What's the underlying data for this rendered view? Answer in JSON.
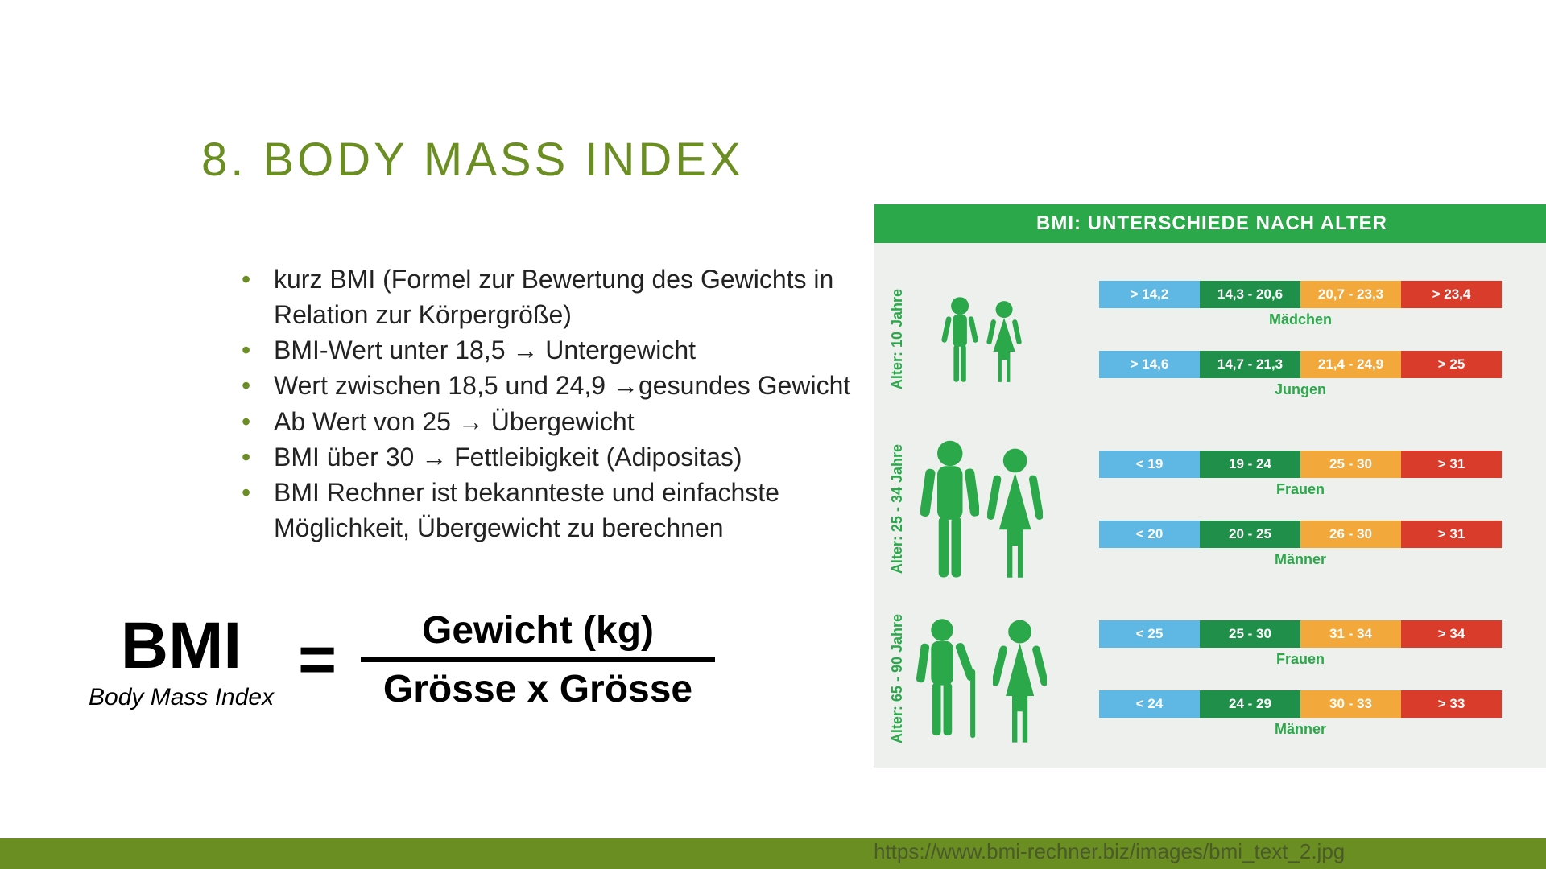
{
  "title": "8. BODY  MASS  INDEX",
  "title_color": "#6b8e23",
  "bullet_marker_color": "#6b8e23",
  "bullets": [
    "kurz BMI (Formel zur Bewertung des Gewichts in Relation zur Körpergröße)",
    "BMI-Wert unter 18,5 →  Untergewicht",
    "Wert zwischen 18,5 und 24,9 →gesundes Gewicht",
    "Ab Wert von 25 → Übergewicht",
    "BMI über 30  → Fettleibigkeit (Adipositas)",
    "BMI Rechner ist bekannteste und einfachste Möglichkeit, Übergewicht zu berechnen"
  ],
  "formula": {
    "lhs": "BMI",
    "lhs_sub": "Body Mass Index",
    "eq": "=",
    "numerator": "Gewicht (kg)",
    "denominator": "Grösse x Grösse"
  },
  "infographic": {
    "header": "BMI: UNTERSCHIEDE NACH ALTER",
    "header_bg": "#2aa84a",
    "body_bg": "#eef0ee",
    "age_label_color": "#2aa84a",
    "bar_label_color": "#2aa84a",
    "figure_color": "#2aa84a",
    "seg_colors": {
      "under": "#5fb8e4",
      "normal": "#1f8f4a",
      "over": "#f2a83b",
      "obese": "#d93c2b"
    },
    "groups": [
      {
        "age_label": "Alter: 10 Jahre",
        "figures": "children",
        "rows": [
          {
            "label": "Mädchen",
            "segs": [
              "> 14,2",
              "14,3 - 20,6",
              "20,7 - 23,3",
              "> 23,4"
            ]
          },
          {
            "label": "Jungen",
            "segs": [
              "> 14,6",
              "14,7 - 21,3",
              "21,4 - 24,9",
              "> 25"
            ]
          }
        ]
      },
      {
        "age_label": "Alter: 25 - 34 Jahre",
        "figures": "adults",
        "rows": [
          {
            "label": "Frauen",
            "segs": [
              "< 19",
              "19 - 24",
              "25 - 30",
              "> 31"
            ]
          },
          {
            "label": "Männer",
            "segs": [
              "< 20",
              "20 - 25",
              "26 - 30",
              "> 31"
            ]
          }
        ]
      },
      {
        "age_label": "Alter: 65 - 90 Jahre",
        "figures": "seniors",
        "rows": [
          {
            "label": "Frauen",
            "segs": [
              "< 25",
              "25 - 30",
              "31 - 34",
              "> 34"
            ]
          },
          {
            "label": "Männer",
            "segs": [
              "< 24",
              "24 - 29",
              "30 - 33",
              "> 33"
            ]
          }
        ]
      }
    ]
  },
  "footer": {
    "strip_color": "#6b8e23",
    "url": "https://www.bmi-rechner.biz/images/bmi_text_2.jpg",
    "url_color": "#4a5a2a"
  }
}
